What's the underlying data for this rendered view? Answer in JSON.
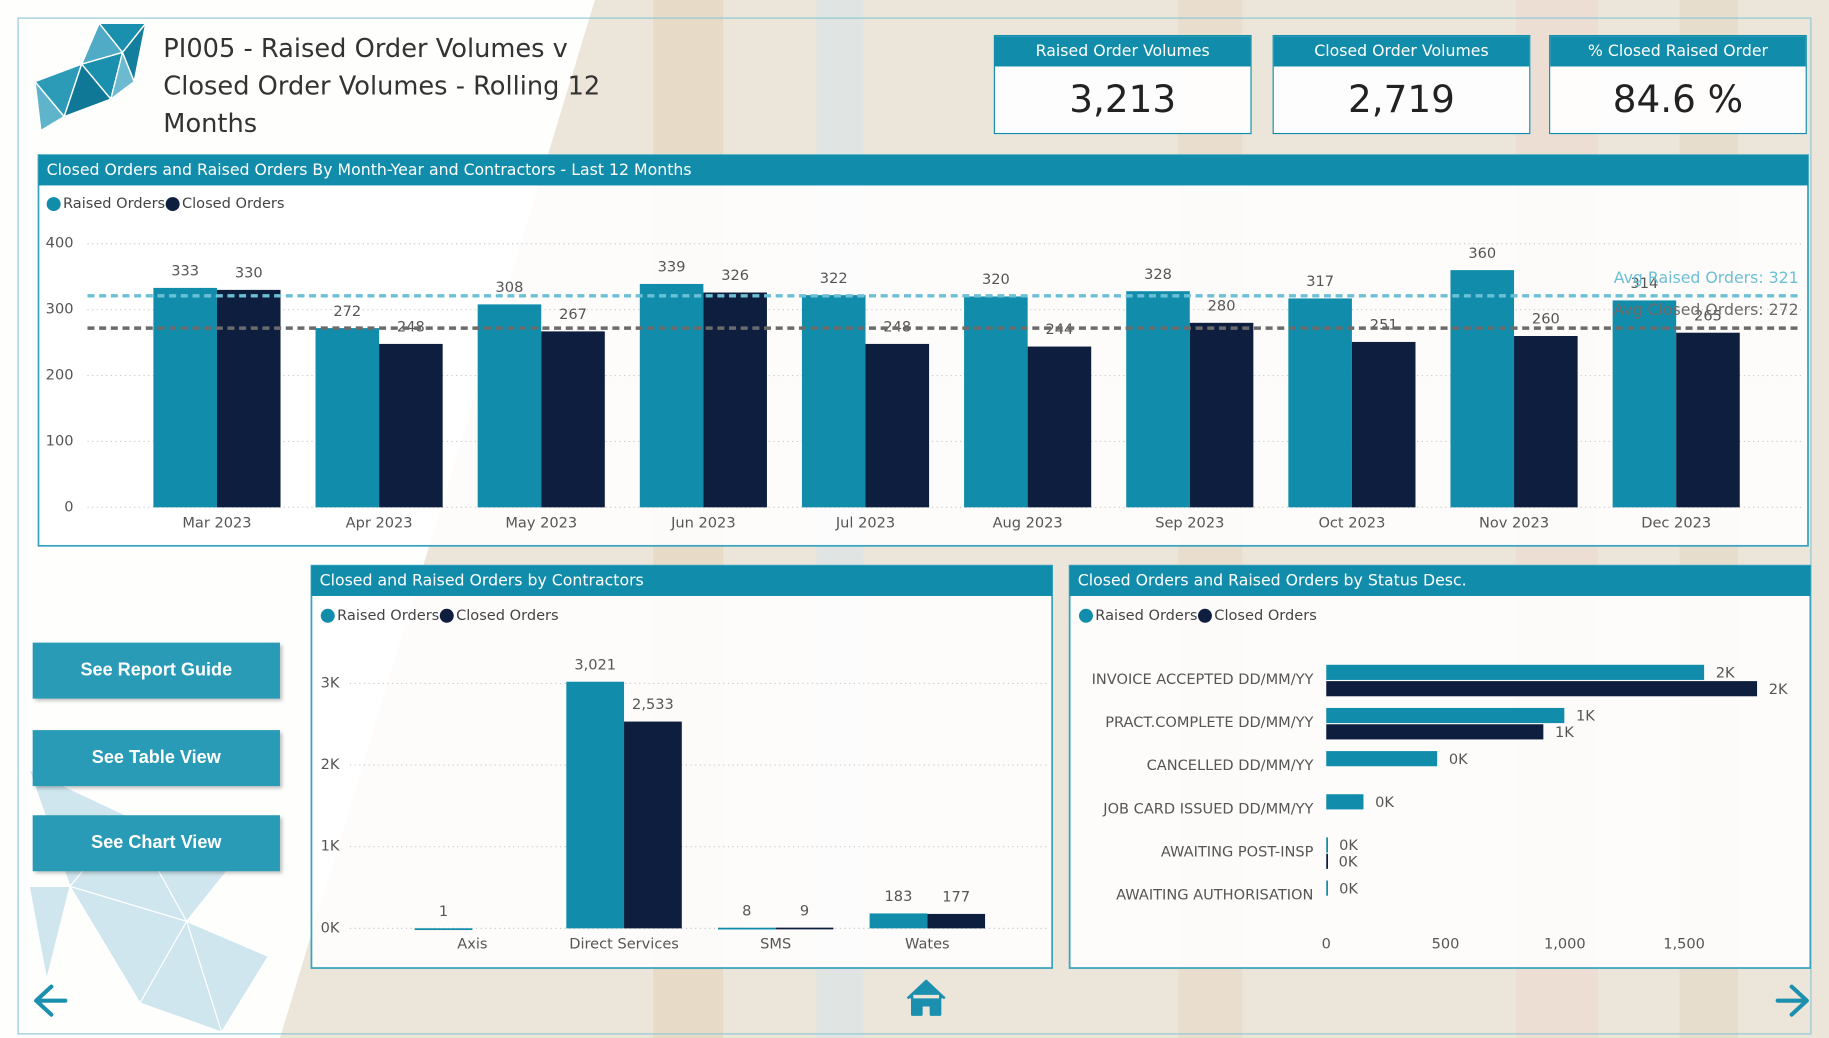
{
  "header": {
    "title": "PI005 - Raised Order Volumes v Closed Order Volumes - Rolling 12 Months"
  },
  "kpis": [
    {
      "label": "Raised Order Volumes",
      "value": "3,213"
    },
    {
      "label": "Closed Order Volumes",
      "value": "2,719"
    },
    {
      "label": "% Closed Raised Order",
      "value": "84.6 %"
    }
  ],
  "buttons": [
    "See Report Guide",
    "See Table View",
    "See Chart View"
  ],
  "chart_data": [
    {
      "type": "bar",
      "title": "Closed Orders and Raised Orders By Month-Year and Contractors - Last 12 Months",
      "categories": [
        "Mar 2023",
        "Apr 2023",
        "May 2023",
        "Jun 2023",
        "Jul 2023",
        "Aug 2023",
        "Sep 2023",
        "Oct 2023",
        "Nov 2023",
        "Dec 2023"
      ],
      "series": [
        {
          "name": "Raised Orders",
          "color": "#118dab",
          "values": [
            333,
            272,
            308,
            339,
            322,
            320,
            328,
            317,
            360,
            314
          ]
        },
        {
          "name": "Closed Orders",
          "color": "#0e1e3e",
          "values": [
            330,
            248,
            267,
            326,
            248,
            244,
            280,
            251,
            260,
            265
          ]
        }
      ],
      "ylim": [
        0,
        400
      ],
      "yticks": [
        0,
        100,
        200,
        300,
        400
      ],
      "grid": true,
      "reference_lines": [
        {
          "value": 321,
          "label": "Avg Raised Orders: 321",
          "color": "#6cc0d6"
        },
        {
          "value": 272,
          "label": "Avg Closed Orders: 272",
          "color": "#6b6b6b"
        }
      ]
    },
    {
      "type": "bar",
      "title": "Closed and Raised Orders by Contractors",
      "categories": [
        "Axis",
        "Direct Services",
        "SMS",
        "Wates"
      ],
      "series": [
        {
          "name": "Raised Orders",
          "color": "#118dab",
          "values": [
            1,
            3021,
            8,
            183
          ],
          "value_labels": [
            "1",
            "3,021",
            "8",
            "183"
          ]
        },
        {
          "name": "Closed Orders",
          "color": "#0e1e3e",
          "values": [
            null,
            2533,
            9,
            177
          ],
          "value_labels": [
            null,
            "2,533",
            "9",
            "177"
          ]
        }
      ],
      "ylim": [
        0,
        3400
      ],
      "yticks": [
        {
          "value": 0,
          "label": "0K"
        },
        {
          "value": 1000,
          "label": "1K"
        },
        {
          "value": 2000,
          "label": "2K"
        },
        {
          "value": 3000,
          "label": "3K"
        }
      ],
      "grid": true
    },
    {
      "type": "barh",
      "title": "Closed Orders and Raised Orders by Status Desc.",
      "categories": [
        "INVOICE ACCEPTED DD/MM/YY",
        "PRACT.COMPLETE DD/MM/YY",
        "CANCELLED DD/MM/YY",
        "JOB CARD ISSUED DD/MM/YY",
        "AWAITING POST-INSP",
        "AWAITING AUTHORISATION"
      ],
      "series": [
        {
          "name": "Raised Orders",
          "color": "#118dab",
          "values": [
            1584,
            998,
            465,
            156,
            5,
            5
          ],
          "value_labels": [
            "2K",
            "1K",
            "0K",
            "0K",
            "0K",
            "0K"
          ]
        },
        {
          "name": "Closed Orders",
          "color": "#0e1e3e",
          "values": [
            1806,
            910,
            null,
            null,
            3,
            null
          ],
          "value_labels": [
            "2K",
            "1K",
            null,
            null,
            "0K",
            null
          ]
        }
      ],
      "xlim": [
        0,
        1950
      ],
      "xticks": [
        0,
        500,
        {
          "value": 1000,
          "label": "1,000"
        },
        {
          "value": 1500,
          "label": "1,500"
        }
      ],
      "grid": false
    }
  ]
}
